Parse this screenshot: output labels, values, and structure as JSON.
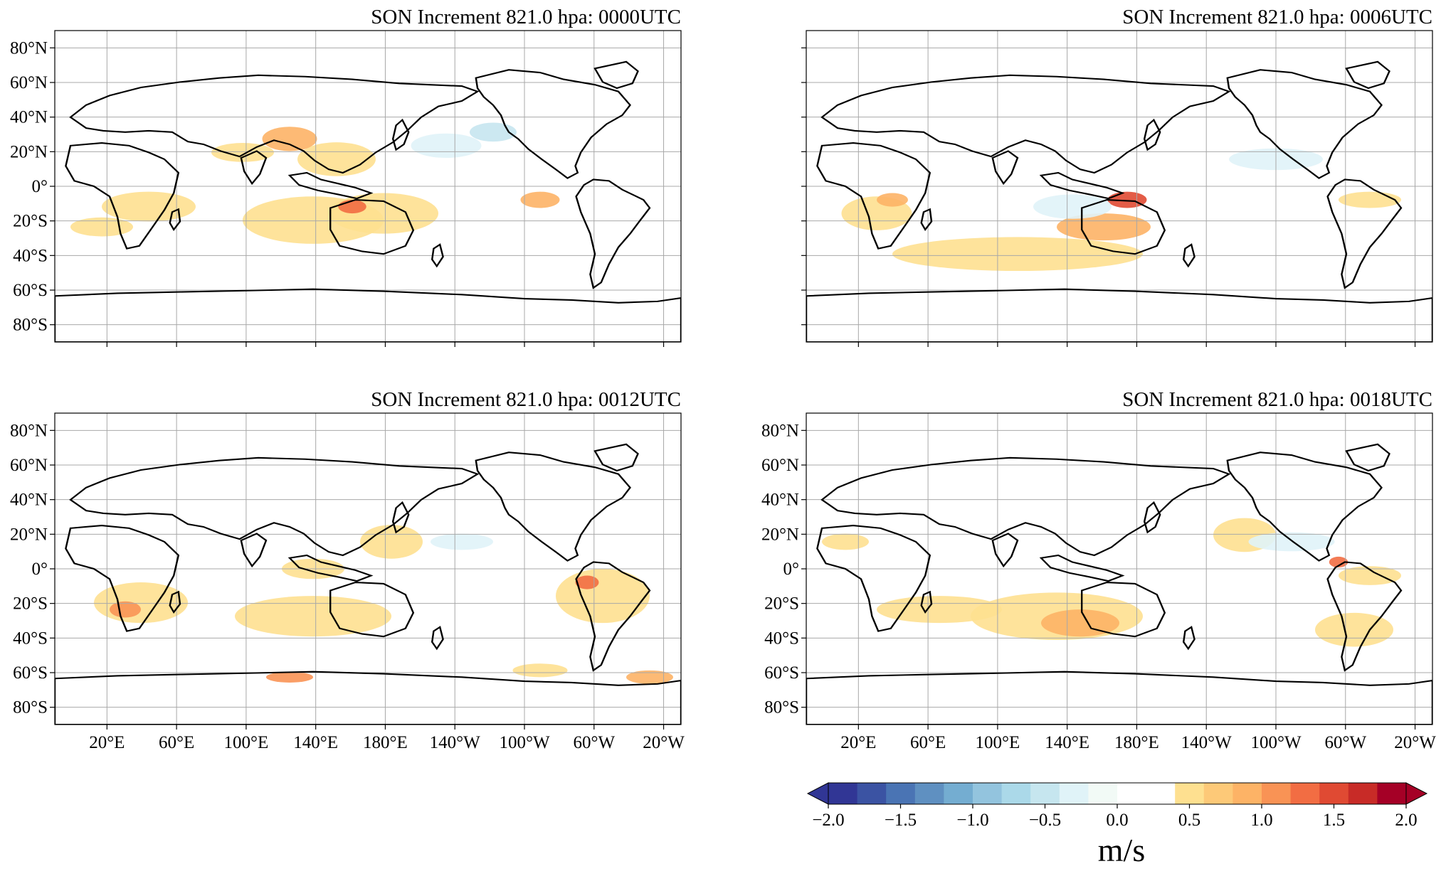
{
  "panels": [
    {
      "title": "SON Increment 821.0 hpa: 0000UTC"
    },
    {
      "title": "SON Increment 821.0 hpa: 0006UTC"
    },
    {
      "title": "SON Increment 821.0 hpa: 0012UTC"
    },
    {
      "title": "SON Increment 821.0 hpa: 0018UTC"
    }
  ],
  "axes": {
    "lat_labels": [
      "80°N",
      "60°N",
      "40°N",
      "20°N",
      "0°",
      "20°S",
      "40°S",
      "60°S",
      "80°S"
    ],
    "lat_values": [
      80,
      60,
      40,
      20,
      0,
      -20,
      -40,
      -60,
      -80
    ],
    "lon_labels": [
      "20°E",
      "60°E",
      "100°E",
      "140°E",
      "180°E",
      "140°W",
      "100°W",
      "60°W",
      "20°W"
    ],
    "lon_values": [
      20,
      60,
      100,
      140,
      180,
      -140,
      -100,
      -60,
      -20
    ],
    "lon_range": [
      -10,
      350
    ],
    "lat_range": [
      -90,
      90
    ],
    "projection": "PlateCarree, central longitude 170",
    "grid": true
  },
  "colorbar": {
    "unit": "m/s",
    "tick_labels": [
      "−2.0",
      "−1.5",
      "−1.0",
      "−0.5",
      "0.0",
      "0.5",
      "1.0",
      "1.5",
      "2.0"
    ],
    "ticks": [
      -2.0,
      -1.5,
      -1.0,
      -0.5,
      0.0,
      0.5,
      1.0,
      1.5,
      2.0
    ],
    "range": [
      -2.0,
      2.0
    ],
    "extend": "both",
    "colors": [
      "#313695",
      "#3b53a3",
      "#4a74b4",
      "#5f90c1",
      "#74add1",
      "#93c4de",
      "#abd9e9",
      "#c6e6ef",
      "#e0f3f8",
      "#f2faf6",
      "#ffffff",
      "#ffffff",
      "#fee090",
      "#fdc978",
      "#fdb366",
      "#f99355",
      "#f26d43",
      "#e04a33",
      "#c82b27",
      "#a50026"
    ]
  }
}
